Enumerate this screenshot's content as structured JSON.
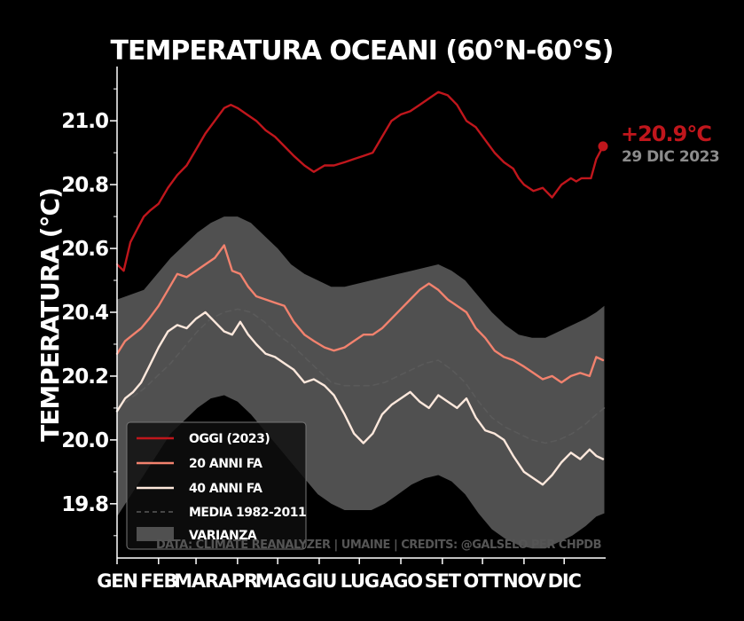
{
  "chart_data": {
    "type": "line",
    "title": "TEMPERATURA OCEANI (60°N-60°S)",
    "ylabel": "TEMPERATURA (°C)",
    "xlabel": "",
    "ylim": [
      19.63,
      21.17
    ],
    "xlim": [
      0,
      365
    ],
    "yticks": [
      "19.8",
      "20.0",
      "20.2",
      "20.4",
      "20.6",
      "20.8",
      "21.0"
    ],
    "ytick_values": [
      19.8,
      20.0,
      20.2,
      20.4,
      20.6,
      20.8,
      21.0
    ],
    "xtick_positions": [
      0,
      31,
      59,
      90,
      120,
      151,
      181,
      212,
      243,
      273,
      304,
      334
    ],
    "categories": [
      "GEN",
      "FEB",
      "MAR",
      "APR",
      "MAG",
      "GIU",
      "LUG",
      "AGO",
      "SET",
      "OTT",
      "NOV",
      "DIC"
    ],
    "grid": false,
    "legend_position": "bottom-left",
    "credits": "DATA: CLIMATE REANALYZER | UMAINE | CREDITS: @GALSELO PER CHPDB",
    "current_value_label": "+20.9°C",
    "current_date_label": "29 DIC 2023",
    "series": [
      {
        "name": "OGGI (2023)",
        "color": "#c0161c",
        "style": "solid",
        "x": [
          0,
          5,
          10,
          15,
          20,
          25,
          31,
          38,
          45,
          52,
          59,
          66,
          73,
          80,
          85,
          90,
          97,
          104,
          111,
          118,
          125,
          132,
          140,
          147,
          155,
          162,
          170,
          177,
          184,
          191,
          198,
          205,
          212,
          219,
          226,
          233,
          240,
          247,
          254,
          261,
          268,
          275,
          282,
          289,
          296,
          300,
          304,
          311,
          318,
          325,
          332,
          339,
          343,
          347,
          354,
          358,
          363
        ],
        "values": [
          20.55,
          20.53,
          20.62,
          20.66,
          20.7,
          20.72,
          20.74,
          20.79,
          20.83,
          20.86,
          20.91,
          20.96,
          21.0,
          21.04,
          21.05,
          21.04,
          21.02,
          21.0,
          20.97,
          20.95,
          20.92,
          20.89,
          20.86,
          20.84,
          20.86,
          20.86,
          20.87,
          20.88,
          20.89,
          20.9,
          20.95,
          21.0,
          21.02,
          21.03,
          21.05,
          21.07,
          21.09,
          21.08,
          21.05,
          21.0,
          20.98,
          20.94,
          20.9,
          20.87,
          20.85,
          20.82,
          20.8,
          20.78,
          20.79,
          20.76,
          20.8,
          20.82,
          20.81,
          20.82,
          20.82,
          20.88,
          20.92
        ]
      },
      {
        "name": "20 ANNI FA",
        "color": "#f2826e",
        "style": "solid",
        "x": [
          0,
          6,
          12,
          18,
          24,
          31,
          38,
          45,
          52,
          59,
          66,
          73,
          80,
          86,
          92,
          98,
          104,
          111,
          118,
          125,
          132,
          140,
          147,
          155,
          162,
          170,
          177,
          184,
          191,
          198,
          205,
          212,
          219,
          226,
          233,
          240,
          247,
          254,
          261,
          268,
          275,
          282,
          289,
          296,
          304,
          311,
          318,
          325,
          332,
          339,
          346,
          353,
          358,
          363
        ],
        "values": [
          20.27,
          20.31,
          20.33,
          20.35,
          20.38,
          20.42,
          20.47,
          20.52,
          20.51,
          20.53,
          20.55,
          20.57,
          20.61,
          20.53,
          20.52,
          20.48,
          20.45,
          20.44,
          20.43,
          20.42,
          20.37,
          20.33,
          20.31,
          20.29,
          20.28,
          20.29,
          20.31,
          20.33,
          20.33,
          20.35,
          20.38,
          20.41,
          20.44,
          20.47,
          20.49,
          20.47,
          20.44,
          20.42,
          20.4,
          20.35,
          20.32,
          20.28,
          20.26,
          20.25,
          20.23,
          20.21,
          20.19,
          20.2,
          20.18,
          20.2,
          20.21,
          20.2,
          20.26,
          20.25
        ]
      },
      {
        "name": "40 ANNI FA",
        "color": "#fde8dc",
        "style": "solid",
        "x": [
          0,
          6,
          12,
          18,
          24,
          31,
          38,
          45,
          52,
          59,
          66,
          73,
          80,
          86,
          92,
          98,
          104,
          111,
          118,
          125,
          132,
          140,
          147,
          155,
          162,
          170,
          177,
          184,
          191,
          198,
          205,
          212,
          219,
          226,
          233,
          240,
          247,
          254,
          261,
          268,
          275,
          282,
          289,
          296,
          304,
          311,
          318,
          325,
          332,
          339,
          346,
          353,
          358,
          363
        ],
        "values": [
          20.09,
          20.13,
          20.15,
          20.18,
          20.23,
          20.29,
          20.34,
          20.36,
          20.35,
          20.38,
          20.4,
          20.37,
          20.34,
          20.33,
          20.37,
          20.33,
          20.3,
          20.27,
          20.26,
          20.24,
          20.22,
          20.18,
          20.19,
          20.17,
          20.14,
          20.08,
          20.02,
          19.99,
          20.02,
          20.08,
          20.11,
          20.13,
          20.15,
          20.12,
          20.1,
          20.14,
          20.12,
          20.1,
          20.13,
          20.07,
          20.03,
          20.02,
          20.0,
          19.95,
          19.9,
          19.88,
          19.86,
          19.89,
          19.93,
          19.96,
          19.94,
          19.97,
          19.95,
          19.94
        ]
      },
      {
        "name": "MEDIA 1982-2011",
        "color": "#5a5a5a",
        "style": "dashed",
        "x": [
          0,
          20,
          40,
          60,
          70,
          80,
          90,
          100,
          110,
          120,
          130,
          140,
          150,
          160,
          170,
          180,
          190,
          200,
          210,
          220,
          230,
          240,
          250,
          260,
          270,
          280,
          290,
          300,
          310,
          320,
          330,
          340,
          350,
          358,
          364
        ],
        "values": [
          20.1,
          20.16,
          20.24,
          20.34,
          20.38,
          20.4,
          20.41,
          20.4,
          20.37,
          20.33,
          20.3,
          20.26,
          20.22,
          20.18,
          20.17,
          20.17,
          20.17,
          20.18,
          20.2,
          20.22,
          20.24,
          20.25,
          20.22,
          20.18,
          20.12,
          20.07,
          20.04,
          20.02,
          20.0,
          19.99,
          20.0,
          20.02,
          20.05,
          20.08,
          20.1
        ]
      }
    ],
    "variance": {
      "name": "VARIANZA",
      "color": "#505050",
      "x": [
        0,
        20,
        40,
        60,
        70,
        80,
        90,
        100,
        110,
        120,
        130,
        140,
        150,
        160,
        170,
        180,
        190,
        200,
        210,
        220,
        230,
        240,
        250,
        260,
        270,
        280,
        290,
        300,
        310,
        320,
        330,
        340,
        350,
        358,
        364
      ],
      "upper": [
        20.44,
        20.47,
        20.57,
        20.65,
        20.68,
        20.7,
        20.7,
        20.68,
        20.64,
        20.6,
        20.55,
        20.52,
        20.5,
        20.48,
        20.48,
        20.49,
        20.5,
        20.51,
        20.52,
        20.53,
        20.54,
        20.55,
        20.53,
        20.5,
        20.45,
        20.4,
        20.36,
        20.33,
        20.32,
        20.32,
        20.34,
        20.36,
        20.38,
        20.4,
        20.42
      ],
      "lower": [
        19.76,
        19.89,
        20.02,
        20.1,
        20.13,
        20.14,
        20.12,
        20.08,
        20.03,
        19.98,
        19.93,
        19.88,
        19.83,
        19.8,
        19.78,
        19.78,
        19.78,
        19.8,
        19.83,
        19.86,
        19.88,
        19.89,
        19.87,
        19.83,
        19.77,
        19.72,
        19.69,
        19.67,
        19.66,
        19.66,
        19.68,
        19.7,
        19.73,
        19.76,
        19.77
      ]
    }
  }
}
